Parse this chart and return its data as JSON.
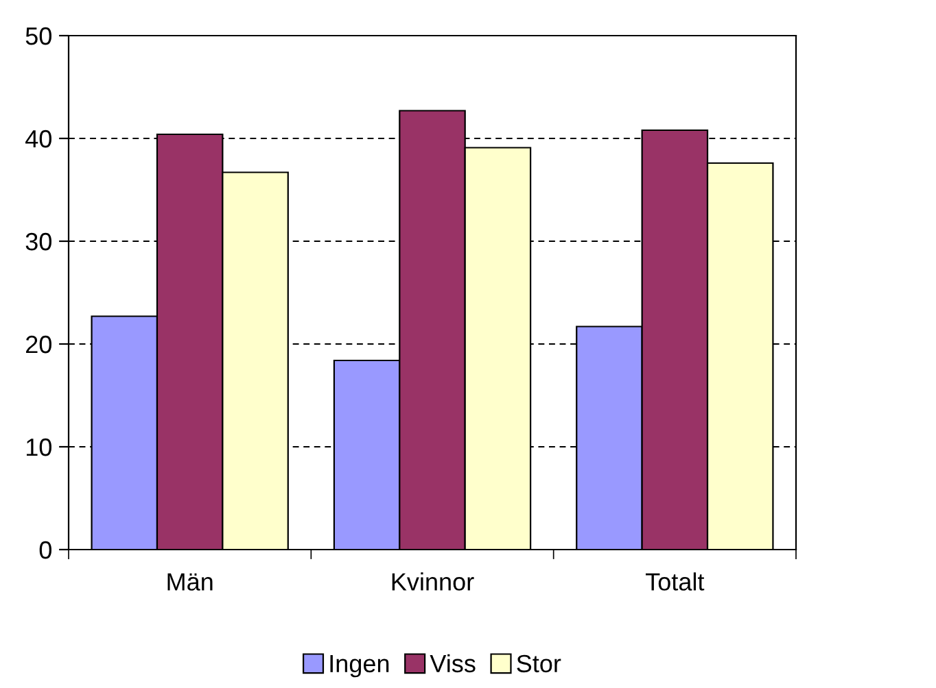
{
  "chart_data": {
    "type": "bar",
    "categories": [
      "Män",
      "Kvinnor",
      "Totalt"
    ],
    "series": [
      {
        "name": "Ingen",
        "color": "#9999ff",
        "values": [
          22.7,
          18.4,
          21.7
        ]
      },
      {
        "name": "Viss",
        "color": "#993366",
        "values": [
          40.4,
          42.7,
          40.8
        ]
      },
      {
        "name": "Stor",
        "color": "#ffffcc",
        "values": [
          36.7,
          39.1,
          37.6
        ]
      }
    ],
    "ylim": [
      0,
      50
    ],
    "yticks": [
      0,
      10,
      20,
      30,
      40,
      50
    ],
    "grid": "y",
    "legend": "bottom"
  }
}
